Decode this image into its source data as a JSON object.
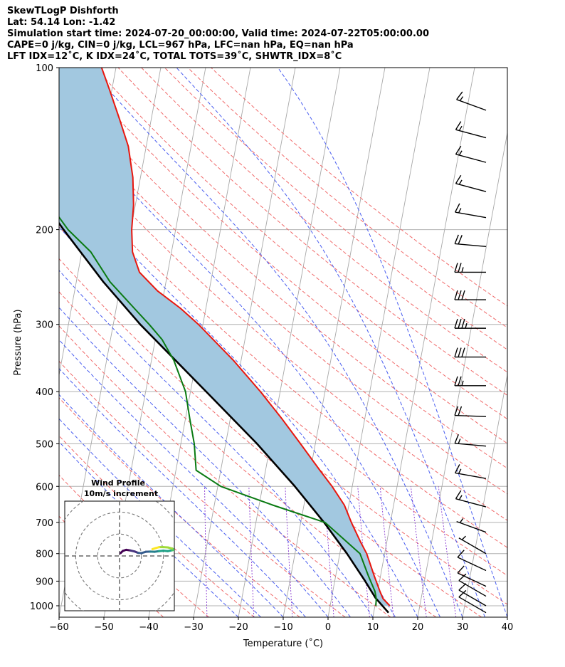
{
  "header": {
    "line1": "SkewTLogP Dishforth",
    "line2": "Lat: 54.14   Lon: -1.42",
    "line3": "Simulation start time: 2024-07-20_00:00:00, Valid time: 2024-07-22T05:00:00.00",
    "line4": "CAPE=0 j/kg, CIN=0 j/kg, LCL=967 hPa, LFC=nan hPa, EQ=nan hPa",
    "line5": "LFT IDX=12˚C, K IDX=24˚C, TOTAL TOTS=39˚C, SHWTR_IDX=8˚C"
  },
  "chart_data": {
    "type": "skewt",
    "xlabel": "Temperature (˚C)",
    "ylabel": "Pressure (hPa)",
    "xlim": [
      -60,
      40
    ],
    "ylim": [
      1050,
      100
    ],
    "y_scale": "log",
    "x_ticks": [
      "−60",
      "−50",
      "−40",
      "−30",
      "−20",
      "−10",
      "0",
      "10",
      "20",
      "30",
      "40"
    ],
    "y_ticks": [
      "1000",
      "900",
      "800",
      "700",
      "600",
      "500",
      "400",
      "300",
      "200",
      "100"
    ],
    "grid": true,
    "colors": {
      "temperature": "#e8160e",
      "dewpoint": "#0a7a12",
      "parcel": "#000000",
      "shade": "#a2c8e0"
    },
    "temperature": [
      {
        "p": 1000,
        "t": 13.3
      },
      {
        "p": 970,
        "t": 11.5
      },
      {
        "p": 940,
        "t": 10.5
      },
      {
        "p": 880,
        "t": 8.6
      },
      {
        "p": 800,
        "t": 6.0
      },
      {
        "p": 760,
        "t": 4.1
      },
      {
        "p": 700,
        "t": 1.3
      },
      {
        "p": 650,
        "t": -1.0
      },
      {
        "p": 600,
        "t": -4.5
      },
      {
        "p": 560,
        "t": -7.9
      },
      {
        "p": 500,
        "t": -13.3
      },
      {
        "p": 450,
        "t": -18.4
      },
      {
        "p": 400,
        "t": -24.4
      },
      {
        "p": 350,
        "t": -31.7
      },
      {
        "p": 300,
        "t": -41.0
      },
      {
        "p": 280,
        "t": -45.7
      },
      {
        "p": 260,
        "t": -51.5
      },
      {
        "p": 240,
        "t": -56.3
      },
      {
        "p": 220,
        "t": -58.7
      },
      {
        "p": 200,
        "t": -59.8
      },
      {
        "p": 180,
        "t": -60.4
      },
      {
        "p": 160,
        "t": -61.7
      },
      {
        "p": 140,
        "t": -64.0
      },
      {
        "p": 125,
        "t": -67.0
      },
      {
        "p": 110,
        "t": -70.5
      },
      {
        "p": 100,
        "t": -73.2
      }
    ],
    "dewpoint": [
      {
        "p": 1000,
        "t": 10.2
      },
      {
        "p": 970,
        "t": 10.0
      },
      {
        "p": 940,
        "t": 9.4
      },
      {
        "p": 880,
        "t": 7.3
      },
      {
        "p": 800,
        "t": 4.5
      },
      {
        "p": 760,
        "t": 1.0
      },
      {
        "p": 700,
        "t": -4.6
      },
      {
        "p": 650,
        "t": -17.0
      },
      {
        "p": 600,
        "t": -29.3
      },
      {
        "p": 560,
        "t": -35.5
      },
      {
        "p": 500,
        "t": -37.0
      },
      {
        "p": 450,
        "t": -39.0
      },
      {
        "p": 400,
        "t": -41.1
      },
      {
        "p": 350,
        "t": -45.0
      },
      {
        "p": 320,
        "t": -48.5
      },
      {
        "p": 300,
        "t": -52.0
      },
      {
        "p": 280,
        "t": -56.0
      },
      {
        "p": 250,
        "t": -62.5
      },
      {
        "p": 220,
        "t": -68.0
      },
      {
        "p": 200,
        "t": -74.0
      },
      {
        "p": 180,
        "t": -79.0
      },
      {
        "p": 165,
        "t": -82.0
      },
      {
        "p": 145,
        "t": -86.5
      },
      {
        "p": 125,
        "t": -90.5
      },
      {
        "p": 110,
        "t": -95.0
      },
      {
        "p": 100,
        "t": -98.0
      }
    ],
    "parcel": [
      {
        "p": 1030,
        "t": 13.3
      },
      {
        "p": 967,
        "t": 9.8
      },
      {
        "p": 900,
        "t": 6.8
      },
      {
        "p": 800,
        "t": 1.6
      },
      {
        "p": 700,
        "t": -4.8
      },
      {
        "p": 600,
        "t": -12.8
      },
      {
        "p": 500,
        "t": -23.0
      },
      {
        "p": 400,
        "t": -36.5
      },
      {
        "p": 300,
        "t": -54.0
      },
      {
        "p": 250,
        "t": -64.0
      },
      {
        "p": 200,
        "t": -75.0
      },
      {
        "p": 150,
        "t": -88.5
      },
      {
        "p": 100,
        "t": -106.0
      }
    ],
    "wind_barbs": [
      {
        "p": 1030,
        "speed_kt": 10,
        "dir": 300
      },
      {
        "p": 1000,
        "speed_kt": 12,
        "dir": 300
      },
      {
        "p": 960,
        "speed_kt": 12,
        "dir": 300
      },
      {
        "p": 920,
        "speed_kt": 12,
        "dir": 295
      },
      {
        "p": 860,
        "speed_kt": 10,
        "dir": 295
      },
      {
        "p": 800,
        "speed_kt": 8,
        "dir": 300
      },
      {
        "p": 730,
        "speed_kt": 8,
        "dir": 290
      },
      {
        "p": 655,
        "speed_kt": 15,
        "dir": 285
      },
      {
        "p": 580,
        "speed_kt": 15,
        "dir": 280
      },
      {
        "p": 505,
        "speed_kt": 15,
        "dir": 275
      },
      {
        "p": 445,
        "speed_kt": 20,
        "dir": 272
      },
      {
        "p": 390,
        "speed_kt": 25,
        "dir": 270
      },
      {
        "p": 345,
        "speed_kt": 30,
        "dir": 270
      },
      {
        "p": 305,
        "speed_kt": 35,
        "dir": 270
      },
      {
        "p": 270,
        "speed_kt": 30,
        "dir": 270
      },
      {
        "p": 240,
        "speed_kt": 25,
        "dir": 270
      },
      {
        "p": 215,
        "speed_kt": 20,
        "dir": 275
      },
      {
        "p": 190,
        "speed_kt": 15,
        "dir": 280
      },
      {
        "p": 170,
        "speed_kt": 15,
        "dir": 285
      },
      {
        "p": 150,
        "speed_kt": 15,
        "dir": 285
      },
      {
        "p": 135,
        "speed_kt": 15,
        "dir": 285
      },
      {
        "p": 120,
        "speed_kt": 15,
        "dir": 290
      }
    ],
    "hodograph": {
      "title": "Wind Profile",
      "subtitle": "10m/s increment",
      "rings_ms": [
        10,
        20,
        30
      ],
      "range_ms": 25,
      "points": [
        {
          "u": 0.5,
          "v": 1.3
        },
        {
          "u": 1.5,
          "v": 2.3
        },
        {
          "u": 3.0,
          "v": 2.8
        },
        {
          "u": 5.0,
          "v": 2.5
        },
        {
          "u": 7.0,
          "v": 2.0
        },
        {
          "u": 8.5,
          "v": 1.4
        },
        {
          "u": 10.0,
          "v": 1.3
        },
        {
          "u": 12.0,
          "v": 1.9
        },
        {
          "u": 14.0,
          "v": 2.0
        },
        {
          "u": 16.0,
          "v": 1.9
        },
        {
          "u": 18.0,
          "v": 2.2
        },
        {
          "u": 20.0,
          "v": 2.4
        },
        {
          "u": 22.0,
          "v": 2.2
        },
        {
          "u": 24.0,
          "v": 2.6
        },
        {
          "u": 25.0,
          "v": 2.8
        },
        {
          "u": 24.0,
          "v": 3.4
        },
        {
          "u": 22.0,
          "v": 3.9
        },
        {
          "u": 20.0,
          "v": 4.0
        },
        {
          "u": 18.0,
          "v": 4.0
        },
        {
          "u": 16.5,
          "v": 3.6
        },
        {
          "u": 15.0,
          "v": 3.1
        }
      ]
    }
  }
}
